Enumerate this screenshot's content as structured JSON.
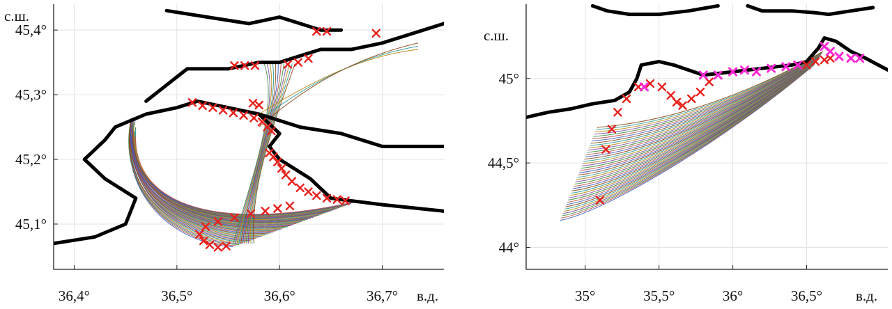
{
  "chart_data": [
    {
      "type": "map-trajectories",
      "xlabel": "в.д.",
      "ylabel": "с.ш.",
      "xlim": [
        36.38,
        36.76
      ],
      "ylim": [
        45.03,
        45.44
      ],
      "x_ticks": [
        36.4,
        36.5,
        36.6,
        36.7
      ],
      "x_tick_labels": [
        "36,4°",
        "36,5°",
        "36,6°",
        "36,7°"
      ],
      "y_ticks": [
        45.1,
        45.2,
        45.3,
        45.4
      ],
      "y_tick_labels": [
        "45,1°",
        "45,2°",
        "45,3°",
        "45,4°"
      ],
      "grid": true,
      "trajectory_colors": [
        "#3b5bc4",
        "#c0504d",
        "#3c8d3c",
        "#7a4fa3",
        "#b8860b",
        "#2a9a9a",
        "#8b4513"
      ],
      "marker_color": "#e8201b",
      "coast": [
        [
          [
            36.38,
            45.07
          ],
          [
            36.42,
            45.08
          ],
          [
            36.45,
            45.1
          ],
          [
            36.46,
            45.14
          ],
          [
            36.43,
            45.17
          ],
          [
            36.41,
            45.2
          ],
          [
            36.43,
            45.23
          ],
          [
            36.44,
            45.25
          ],
          [
            36.47,
            45.27
          ],
          [
            36.5,
            45.28
          ],
          [
            36.52,
            45.29
          ],
          [
            36.55,
            45.28
          ],
          [
            36.58,
            45.27
          ],
          [
            36.6,
            45.24
          ],
          [
            36.59,
            45.22
          ],
          [
            36.6,
            45.2
          ],
          [
            36.63,
            45.17
          ],
          [
            36.65,
            45.14
          ],
          [
            36.7,
            45.13
          ],
          [
            36.76,
            45.12
          ]
        ],
        [
          [
            36.47,
            45.29
          ],
          [
            36.51,
            45.34
          ],
          [
            36.55,
            45.34
          ],
          [
            36.58,
            45.35
          ],
          [
            36.6,
            45.35
          ],
          [
            36.62,
            45.36
          ],
          [
            36.64,
            45.37
          ],
          [
            36.67,
            45.37
          ],
          [
            36.7,
            45.38
          ],
          [
            36.76,
            45.41
          ]
        ],
        [
          [
            36.49,
            45.43
          ],
          [
            36.53,
            45.42
          ],
          [
            36.57,
            45.41
          ],
          [
            36.6,
            45.42
          ],
          [
            36.62,
            45.41
          ],
          [
            36.64,
            45.4
          ],
          [
            36.66,
            45.4
          ]
        ],
        [
          [
            36.58,
            45.27
          ],
          [
            36.62,
            45.25
          ],
          [
            36.66,
            45.24
          ],
          [
            36.7,
            45.22
          ],
          [
            36.74,
            45.22
          ],
          [
            36.76,
            45.22
          ]
        ]
      ],
      "trajectory_count": 44,
      "markers": [
        [
          36.515,
          45.288
        ],
        [
          36.525,
          45.283
        ],
        [
          36.535,
          45.28
        ],
        [
          36.545,
          45.276
        ],
        [
          36.555,
          45.272
        ],
        [
          36.565,
          45.268
        ],
        [
          36.575,
          45.264
        ],
        [
          36.583,
          45.258
        ],
        [
          36.588,
          45.25
        ],
        [
          36.592,
          45.244
        ],
        [
          36.59,
          45.21
        ],
        [
          36.594,
          45.204
        ],
        [
          36.598,
          45.196
        ],
        [
          36.602,
          45.186
        ],
        [
          36.606,
          45.176
        ],
        [
          36.612,
          45.166
        ],
        [
          36.62,
          45.156
        ],
        [
          36.628,
          45.15
        ],
        [
          36.636,
          45.144
        ],
        [
          36.646,
          45.14
        ],
        [
          36.656,
          45.138
        ],
        [
          36.664,
          45.136
        ],
        [
          36.61,
          45.128
        ],
        [
          36.598,
          45.124
        ],
        [
          36.586,
          45.12
        ],
        [
          36.572,
          45.116
        ],
        [
          36.556,
          45.11
        ],
        [
          36.54,
          45.104
        ],
        [
          36.528,
          45.096
        ],
        [
          36.522,
          45.084
        ],
        [
          36.526,
          45.074
        ],
        [
          36.532,
          45.068
        ],
        [
          36.54,
          45.064
        ],
        [
          36.548,
          45.066
        ],
        [
          36.556,
          45.345
        ],
        [
          36.566,
          45.345
        ],
        [
          36.576,
          45.345
        ],
        [
          36.608,
          45.347
        ],
        [
          36.618,
          45.35
        ],
        [
          36.628,
          45.356
        ],
        [
          36.636,
          45.398
        ],
        [
          36.646,
          45.398
        ],
        [
          36.694,
          45.395
        ],
        [
          36.574,
          45.287
        ],
        [
          36.58,
          45.284
        ]
      ]
    },
    {
      "type": "map-trajectories",
      "xlabel": "в.д.",
      "ylabel": "с.ш.",
      "xlim": [
        34.6,
        37.05
      ],
      "ylim": [
        43.87,
        45.44
      ],
      "x_ticks": [
        35,
        35.5,
        36,
        36.5
      ],
      "x_tick_labels": [
        "35°",
        "35,5°",
        "36°",
        "36,5°"
      ],
      "y_ticks": [
        44,
        44.5,
        45
      ],
      "y_tick_labels": [
        "44°",
        "44,5°",
        "45°"
      ],
      "grid": true,
      "trajectory_colors": [
        "#3b5bc4",
        "#c0504d",
        "#3c8d3c",
        "#7a4fa3",
        "#b8860b",
        "#2a9a9a",
        "#8b4513"
      ],
      "marker_color": "#e8201b",
      "marker_color_2": "#ff2ad4",
      "coast": [
        [
          [
            34.6,
            44.77
          ],
          [
            34.75,
            44.8
          ],
          [
            34.9,
            44.82
          ],
          [
            35.05,
            44.85
          ],
          [
            35.2,
            44.87
          ],
          [
            35.3,
            44.92
          ],
          [
            35.35,
            45.0
          ],
          [
            35.38,
            45.08
          ],
          [
            35.5,
            45.1
          ],
          [
            35.6,
            45.08
          ],
          [
            35.7,
            45.05
          ],
          [
            35.8,
            45.02
          ],
          [
            36.0,
            45.04
          ],
          [
            36.2,
            45.06
          ],
          [
            36.4,
            45.08
          ],
          [
            36.5,
            45.1
          ],
          [
            36.58,
            45.18
          ],
          [
            36.62,
            45.24
          ],
          [
            36.7,
            45.22
          ],
          [
            36.8,
            45.16
          ],
          [
            36.9,
            45.12
          ],
          [
            37.05,
            45.05
          ]
        ],
        [
          [
            35.05,
            45.43
          ],
          [
            35.15,
            45.4
          ],
          [
            35.3,
            45.38
          ],
          [
            35.5,
            45.38
          ],
          [
            35.7,
            45.4
          ],
          [
            35.9,
            45.43
          ]
        ],
        [
          [
            36.1,
            45.43
          ],
          [
            36.2,
            45.4
          ],
          [
            36.4,
            45.4
          ],
          [
            36.55,
            45.39
          ],
          [
            36.65,
            45.38
          ],
          [
            36.8,
            45.4
          ],
          [
            36.95,
            45.42
          ]
        ]
      ],
      "trajectory_count": 42,
      "markers": [
        [
          35.1,
          44.28
        ],
        [
          35.14,
          44.58
        ],
        [
          35.18,
          44.7
        ],
        [
          35.22,
          44.8
        ],
        [
          35.28,
          44.88
        ],
        [
          35.36,
          44.95
        ],
        [
          35.44,
          44.97
        ],
        [
          35.52,
          44.95
        ],
        [
          35.58,
          44.9
        ],
        [
          35.62,
          44.86
        ],
        [
          35.66,
          44.84
        ],
        [
          35.72,
          44.88
        ],
        [
          35.78,
          44.92
        ],
        [
          35.84,
          44.98
        ],
        [
          36.5,
          45.08
        ],
        [
          36.56,
          45.1
        ],
        [
          36.62,
          45.11
        ],
        [
          36.66,
          45.12
        ]
      ],
      "markers_2": [
        [
          35.4,
          44.95
        ],
        [
          35.8,
          45.02
        ],
        [
          35.9,
          45.02
        ],
        [
          36.0,
          45.04
        ],
        [
          36.08,
          45.05
        ],
        [
          36.16,
          45.04
        ],
        [
          36.26,
          45.06
        ],
        [
          36.36,
          45.07
        ],
        [
          36.44,
          45.08
        ],
        [
          36.62,
          45.19
        ],
        [
          36.66,
          45.16
        ],
        [
          36.72,
          45.13
        ],
        [
          36.8,
          45.12
        ],
        [
          36.86,
          45.12
        ]
      ]
    }
  ]
}
